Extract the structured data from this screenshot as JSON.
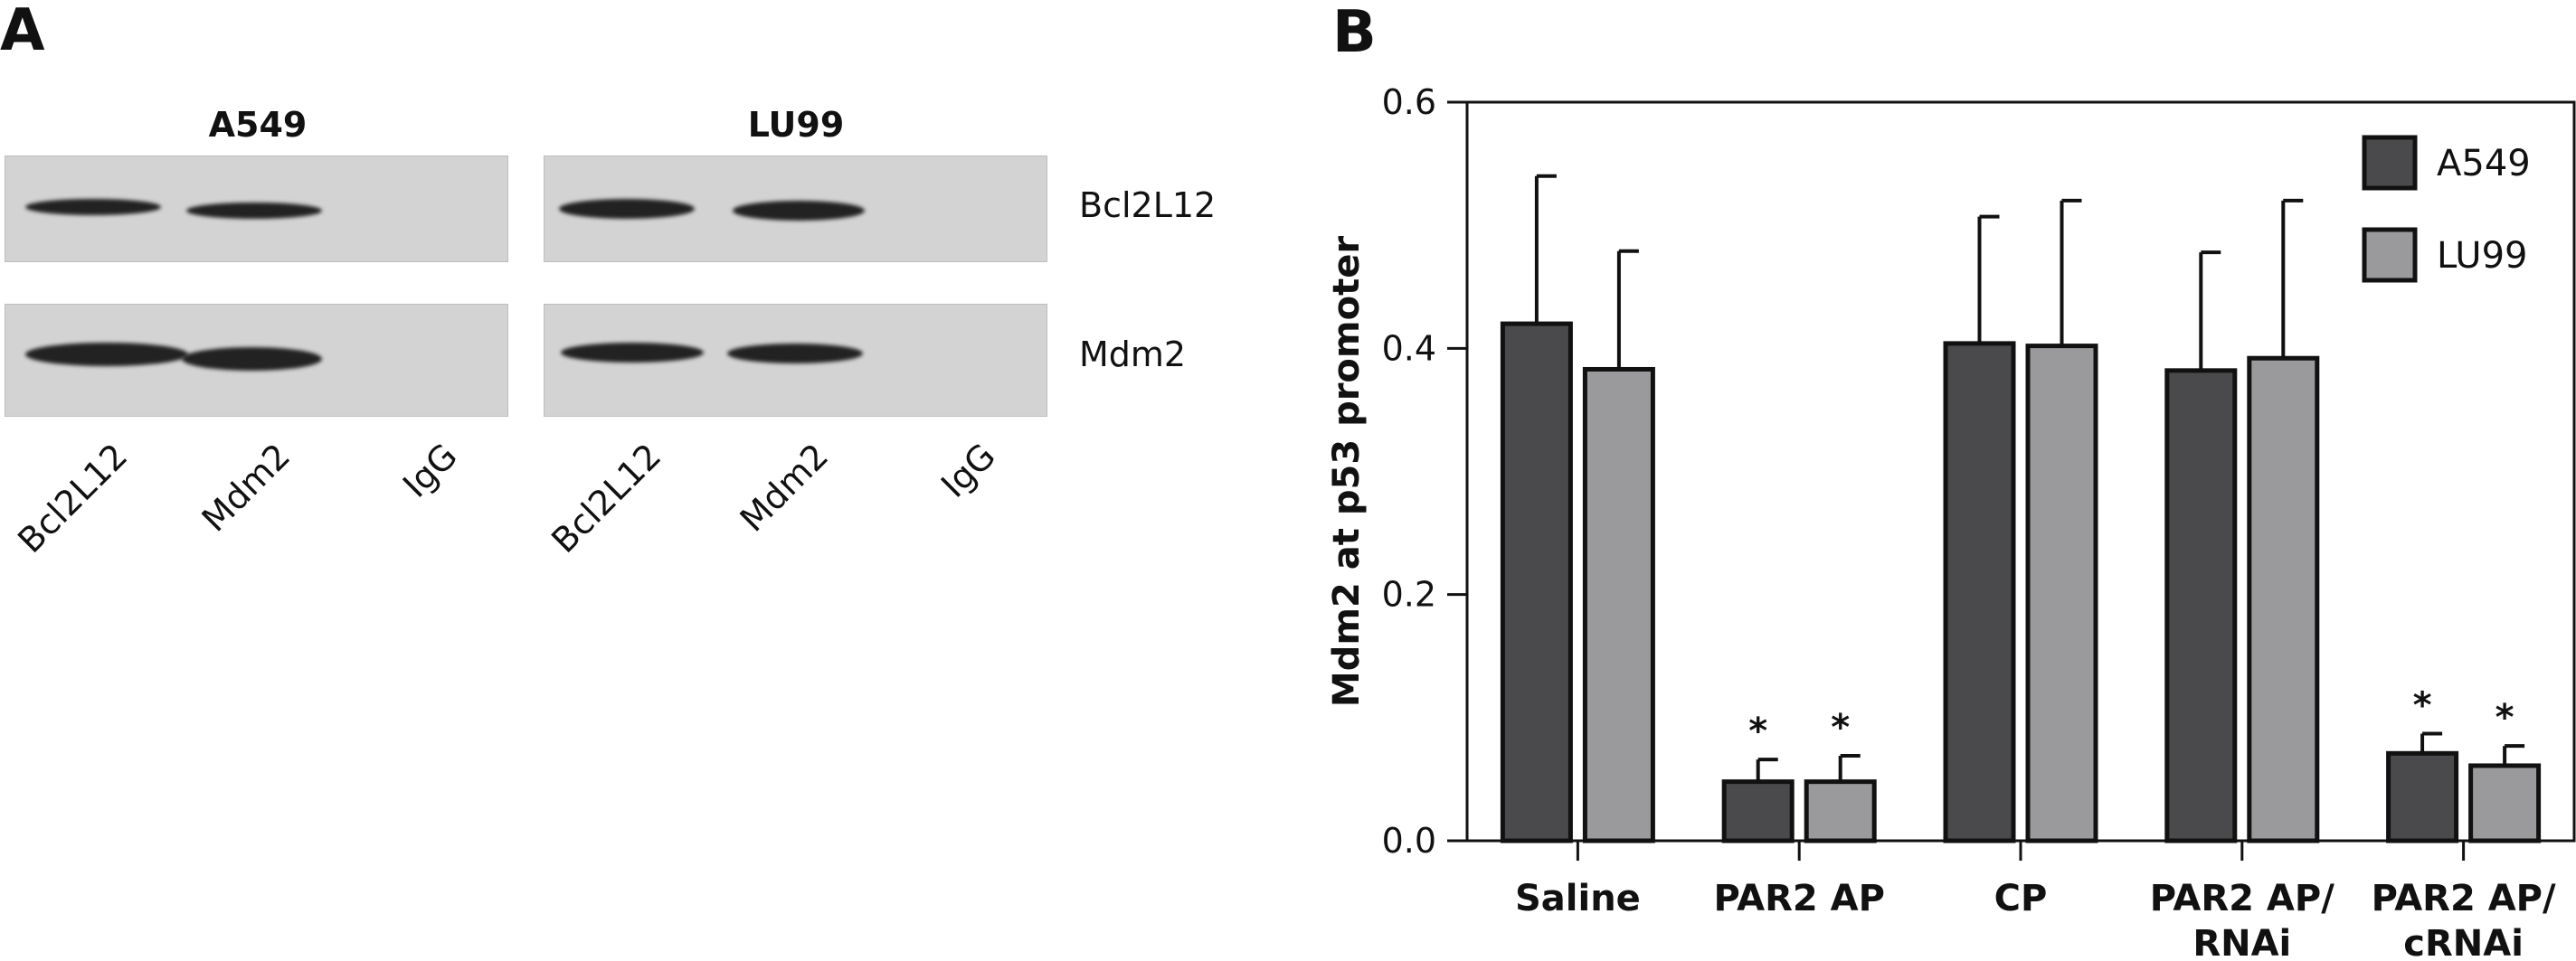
{
  "panel_a": {
    "letter": "A",
    "blots": [
      {
        "title": "A549",
        "lanes": [
          "Bcl2L12",
          "Mdm2",
          "IgG"
        ]
      },
      {
        "title": "LU99",
        "lanes": [
          "Bcl2L12",
          "Mdm2",
          "IgG"
        ]
      }
    ],
    "row_labels": [
      "Bcl2L12",
      "Mdm2"
    ]
  },
  "panel_b": {
    "letter": "B"
  },
  "chart_data": {
    "type": "bar",
    "title": "",
    "xlabel": "",
    "ylabel": "Mdm2 at p53 promoter",
    "ylim": [
      0,
      0.6
    ],
    "yticks": [
      "0.0",
      "0.2",
      "0.4",
      "0.6"
    ],
    "categories": [
      "Saline",
      "PAR2 AP",
      "CP",
      "PAR2 AP/ RNAi",
      "PAR2 AP/ cRNAi"
    ],
    "series": [
      {
        "name": "A549",
        "color": "#4a4a4c",
        "values": [
          0.42,
          0.048,
          0.404,
          0.382,
          0.071
        ],
        "errors": [
          0.12,
          0.018,
          0.103,
          0.096,
          0.016
        ],
        "significance": [
          "",
          "*",
          "",
          "",
          "*"
        ]
      },
      {
        "name": "LU99",
        "color": "#9a9a9d",
        "values": [
          0.383,
          0.048,
          0.402,
          0.392,
          0.061
        ],
        "errors": [
          0.096,
          0.021,
          0.118,
          0.128,
          0.016
        ],
        "significance": [
          "",
          "*",
          "",
          "",
          "*"
        ]
      }
    ],
    "legend_position": "top-right",
    "grid": false
  }
}
